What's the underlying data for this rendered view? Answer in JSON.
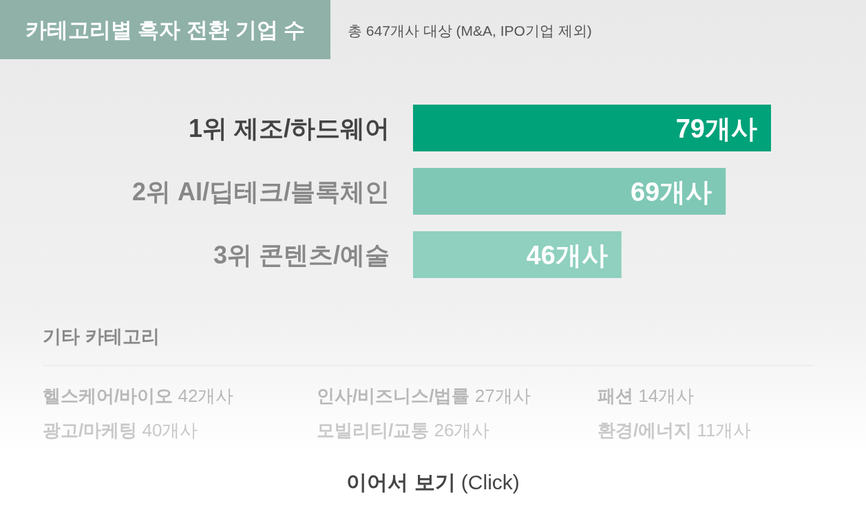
{
  "chart_data": {
    "type": "bar",
    "orientation": "horizontal",
    "title": "카테고리별 흑자 전환 기업 수",
    "subtitle": "총 647개사 대상 (M&A, IPO기업 제외)",
    "categories": [
      "1위  제조/하드웨어",
      "2위  AI/딥테크/블록체인",
      "3위  콘텐츠/예술"
    ],
    "values": [
      79,
      69,
      46
    ],
    "value_labels": [
      "79개사",
      "69개사",
      "46개사"
    ],
    "colors": [
      "#00a27a",
      "#7fc8b5",
      "#8fd0bf"
    ],
    "annotations": [
      "기타 카테고리",
      "헬스케어/바이오 42개사",
      "광고/마케팅 40개사",
      "인사/비즈니스/법률 27개사",
      "모빌리티/교통 26개사",
      "패션 14개사",
      "환경/에너지 11개사",
      "이어서 보기 (Click)"
    ]
  }
}
